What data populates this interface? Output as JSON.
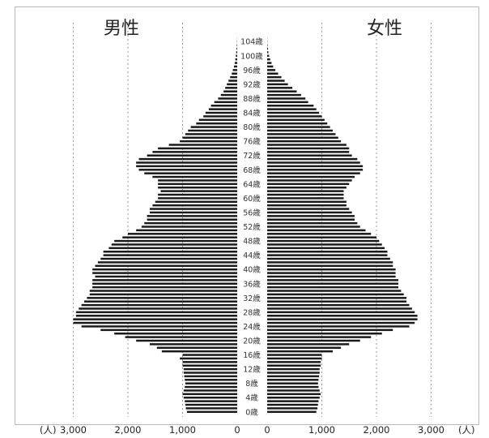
{
  "chart_data": {
    "type": "bar",
    "subtype": "population-pyramid",
    "unit_label": "(人)",
    "panels": [
      {
        "name": "男性",
        "side": "left"
      },
      {
        "name": "女性",
        "side": "right"
      }
    ],
    "age_labels": [
      "0歳",
      "4歳",
      "8歳",
      "12歳",
      "16歳",
      "20歳",
      "24歳",
      "28歳",
      "32歳",
      "36歳",
      "40歳",
      "44歳",
      "48歳",
      "52歳",
      "56歳",
      "60歳",
      "64歳",
      "68歳",
      "72歳",
      "76歳",
      "80歳",
      "84歳",
      "88歳",
      "92歳",
      "96歳",
      "100歳",
      "104歳"
    ],
    "x_ticks": [
      0,
      1000,
      2000,
      3000
    ],
    "x_tick_labels": [
      "0",
      "1,000",
      "2,000",
      "3,000"
    ],
    "xlim": [
      0,
      3100
    ],
    "ages": [
      0,
      1,
      2,
      3,
      4,
      5,
      6,
      7,
      8,
      9,
      10,
      11,
      12,
      13,
      14,
      15,
      16,
      17,
      18,
      19,
      20,
      21,
      22,
      23,
      24,
      25,
      26,
      27,
      28,
      29,
      30,
      31,
      32,
      33,
      34,
      35,
      36,
      37,
      38,
      39,
      40,
      41,
      42,
      43,
      44,
      45,
      46,
      47,
      48,
      49,
      50,
      51,
      52,
      53,
      54,
      55,
      56,
      57,
      58,
      59,
      60,
      61,
      62,
      63,
      64,
      65,
      66,
      67,
      68,
      69,
      70,
      71,
      72,
      73,
      74,
      75,
      76,
      77,
      78,
      79,
      80,
      81,
      82,
      83,
      84,
      85,
      86,
      87,
      88,
      89,
      90,
      91,
      92,
      93,
      94,
      95,
      96,
      97,
      98,
      99,
      100,
      101,
      102,
      103,
      104,
      105
    ],
    "series": [
      {
        "name": "男性",
        "values": [
          920,
          940,
          950,
          960,
          980,
          1000,
          980,
          960,
          950,
          960,
          970,
          980,
          980,
          1000,
          1000,
          1050,
          1000,
          1380,
          1470,
          1600,
          1850,
          2050,
          2250,
          2500,
          2850,
          3000,
          3000,
          2950,
          2950,
          2900,
          2850,
          2800,
          2750,
          2700,
          2700,
          2650,
          2650,
          2650,
          2600,
          2650,
          2650,
          2600,
          2550,
          2500,
          2450,
          2450,
          2350,
          2300,
          2250,
          2100,
          2000,
          1850,
          1750,
          1700,
          1650,
          1650,
          1600,
          1600,
          1550,
          1500,
          1450,
          1450,
          1400,
          1450,
          1450,
          1450,
          1550,
          1700,
          1800,
          1850,
          1850,
          1800,
          1650,
          1550,
          1450,
          1250,
          1050,
          1000,
          950,
          900,
          850,
          750,
          700,
          620,
          580,
          520,
          480,
          420,
          350,
          300,
          250,
          220,
          190,
          160,
          130,
          100,
          80,
          60,
          45,
          35,
          25,
          18,
          12,
          8,
          4,
          2
        ]
      },
      {
        "name": "女性",
        "values": [
          900,
          920,
          930,
          940,
          960,
          980,
          960,
          940,
          930,
          940,
          950,
          960,
          960,
          980,
          980,
          1000,
          1000,
          1200,
          1350,
          1500,
          1700,
          1900,
          2100,
          2300,
          2600,
          2700,
          2750,
          2750,
          2700,
          2650,
          2600,
          2550,
          2550,
          2500,
          2450,
          2400,
          2400,
          2400,
          2350,
          2350,
          2350,
          2300,
          2300,
          2250,
          2200,
          2200,
          2150,
          2100,
          2050,
          2000,
          1900,
          1800,
          1700,
          1650,
          1600,
          1600,
          1550,
          1500,
          1450,
          1450,
          1400,
          1400,
          1400,
          1450,
          1500,
          1550,
          1600,
          1700,
          1750,
          1750,
          1700,
          1650,
          1550,
          1500,
          1500,
          1450,
          1350,
          1300,
          1250,
          1200,
          1150,
          1100,
          1050,
          1000,
          950,
          900,
          850,
          750,
          700,
          620,
          540,
          460,
          380,
          320,
          260,
          200,
          150,
          110,
          80,
          55,
          35,
          22,
          14,
          8,
          4,
          2
        ]
      }
    ]
  }
}
